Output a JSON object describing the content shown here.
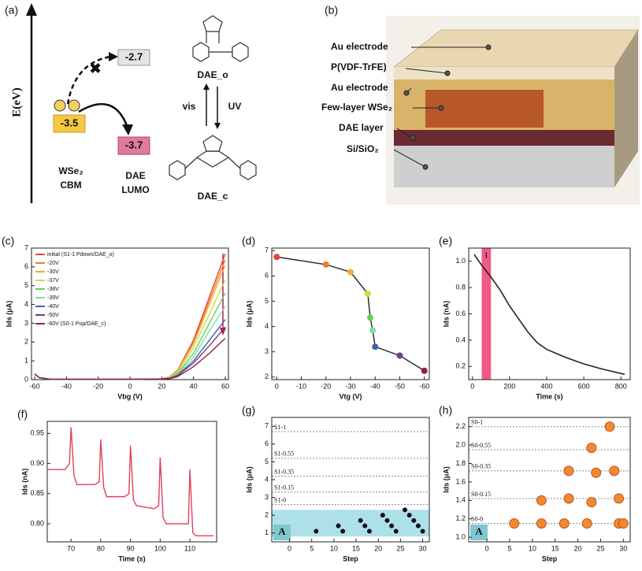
{
  "panel_a": {
    "panel": "(a)",
    "axis_label": "E(eV)",
    "wse2_level": "-3.5",
    "dae_o_level": "-2.7",
    "dae_c_level": "-3.7",
    "wse2_label": [
      "WSe₂",
      "CBM"
    ],
    "dae_label": [
      "DAE",
      "LUMO"
    ],
    "open_form": "DAE_o",
    "closed_form": "DAE_c",
    "vis": "vis",
    "uv": "UV"
  },
  "panel_b": {
    "panel": "(b)",
    "layers": [
      "Au electrode",
      "P(VDF-TrFE)",
      "Au electrode",
      "Few-layer WSe₂",
      "DAE layer",
      "Si/SiO₂"
    ]
  },
  "chart_data": [
    {
      "type": "line",
      "panel": "(c)",
      "xlabel": "Vbg (V)",
      "ylabel": "Ids (μA)",
      "xlim": [
        -62,
        62
      ],
      "ylim": [
        0,
        7
      ],
      "xticks": [
        -60,
        -40,
        -20,
        0,
        20,
        40,
        60
      ],
      "yticks": [
        0,
        1,
        2,
        3,
        4,
        5,
        6,
        7
      ],
      "legend": true,
      "x": [
        -60,
        -57,
        -50,
        -30,
        0,
        20,
        25,
        30,
        40,
        50,
        60
      ],
      "series": [
        {
          "name": "initial (S1-1 Pdown/DAE_o)",
          "color": "#e8443a",
          "values": [
            0.3,
            0.1,
            0.02,
            0.02,
            0.02,
            0.04,
            0.15,
            0.5,
            2.1,
            4.4,
            6.7
          ]
        },
        {
          "name": "-20V",
          "color": "#f07c30",
          "values": [
            0.3,
            0.1,
            0.02,
            0.02,
            0.02,
            0.04,
            0.14,
            0.48,
            2.0,
            4.2,
            6.4
          ]
        },
        {
          "name": "-30V",
          "color": "#f0b030",
          "values": [
            0.3,
            0.1,
            0.02,
            0.02,
            0.02,
            0.04,
            0.14,
            0.46,
            1.9,
            4.0,
            6.1
          ]
        },
        {
          "name": "-37V",
          "color": "#c8e040",
          "values": [
            0.3,
            0.1,
            0.02,
            0.02,
            0.02,
            0.04,
            0.12,
            0.4,
            1.7,
            3.5,
            5.3
          ]
        },
        {
          "name": "-38V",
          "color": "#60d060",
          "values": [
            0.3,
            0.1,
            0.02,
            0.02,
            0.02,
            0.04,
            0.1,
            0.34,
            1.4,
            3.0,
            4.6
          ]
        },
        {
          "name": "-39V",
          "color": "#80e0a0",
          "values": [
            0.3,
            0.1,
            0.02,
            0.02,
            0.02,
            0.04,
            0.09,
            0.29,
            1.2,
            2.6,
            3.9
          ]
        },
        {
          "name": "-40V",
          "color": "#4060b0",
          "values": [
            0.3,
            0.1,
            0.02,
            0.02,
            0.02,
            0.04,
            0.07,
            0.24,
            1.0,
            2.1,
            3.2
          ]
        },
        {
          "name": "-50V",
          "color": "#704080",
          "values": [
            0.3,
            0.1,
            0.02,
            0.02,
            0.02,
            0.04,
            0.06,
            0.21,
            0.88,
            1.8,
            2.8
          ]
        },
        {
          "name": "-60V (S0-1 Pup/DAE_c)",
          "color": "#902040",
          "values": [
            0.3,
            0.1,
            0.02,
            0.02,
            0.02,
            0.04,
            0.05,
            0.16,
            0.69,
            1.4,
            2.2
          ]
        }
      ]
    },
    {
      "type": "line",
      "panel": "(d)",
      "xlabel": "Vtg (V)",
      "ylabel": "Ids (μA)",
      "xlim": [
        2,
        -62
      ],
      "ylim": [
        1.9,
        7.1
      ],
      "xticks": [
        0,
        -10,
        -20,
        -30,
        -40,
        -50,
        -60
      ],
      "yticks": [
        2,
        3,
        4,
        5,
        6,
        7
      ],
      "color": "#222222",
      "x": [
        0,
        -20,
        -30,
        -37,
        -38,
        -39,
        -40,
        -50,
        -60
      ],
      "values": [
        6.75,
        6.45,
        6.15,
        5.3,
        4.35,
        3.85,
        3.2,
        2.85,
        2.25
      ],
      "point_colors": [
        "#e8443a",
        "#f07c30",
        "#f0b030",
        "#c8e040",
        "#60d060",
        "#80e0a0",
        "#4060b0",
        "#704080",
        "#902040"
      ]
    },
    {
      "type": "line",
      "panel": "(e)",
      "xlabel": "Time (s)",
      "ylabel": "Ids (nA)",
      "xlim": [
        -20,
        850
      ],
      "ylim": [
        0.1,
        1.1
      ],
      "xticks": [
        0,
        200,
        400,
        600,
        800
      ],
      "yticks": [
        0.2,
        0.4,
        0.6,
        0.8,
        {
          "value": 1.0,
          "label": "1.0"
        }
      ],
      "color": "#222222",
      "shaded_x": [
        50,
        100
      ],
      "shade_label": "I",
      "x": [
        10,
        50,
        100,
        150,
        200,
        250,
        300,
        350,
        400,
        500,
        600,
        700,
        820
      ],
      "values": [
        1.05,
        0.97,
        0.88,
        0.78,
        0.66,
        0.56,
        0.46,
        0.38,
        0.33,
        0.27,
        0.22,
        0.18,
        0.14
      ]
    },
    {
      "type": "line",
      "panel": "(f)",
      "xlabel": "Time (s)",
      "ylabel": "Ids (nA)",
      "xlim": [
        62,
        119
      ],
      "ylim": [
        0.77,
        0.97
      ],
      "xticks": [
        70,
        80,
        90,
        100,
        110
      ],
      "yticks": [
        {
          "value": 0.8,
          "label": "0.80"
        },
        0.85,
        {
          "value": 0.9,
          "label": "0.90"
        },
        0.95
      ],
      "color": "#e0405a",
      "x": [
        62,
        68,
        69.5,
        70,
        71,
        72,
        78,
        79.5,
        80,
        81,
        82,
        88,
        89.5,
        90,
        91,
        92,
        98,
        99.5,
        100,
        101,
        102,
        108,
        109.5,
        110,
        111,
        112,
        118
      ],
      "values": [
        0.89,
        0.89,
        0.9,
        0.96,
        0.88,
        0.865,
        0.865,
        0.87,
        0.94,
        0.86,
        0.845,
        0.845,
        0.85,
        0.93,
        0.84,
        0.83,
        0.825,
        0.83,
        0.91,
        0.81,
        0.8,
        0.8,
        0.8,
        0.89,
        0.785,
        0.78,
        0.78
      ]
    },
    {
      "type": "scatter",
      "panel": "(g)",
      "xlabel": "Step",
      "ylabel": "Ids (μA)",
      "xlim": [
        -4,
        31.5
      ],
      "ylim": [
        0.5,
        7.5
      ],
      "xticks": [
        0,
        5,
        10,
        15,
        20,
        25,
        30
      ],
      "yticks": [
        1,
        2,
        3,
        4,
        5,
        6,
        7
      ],
      "color": "#111111",
      "band": [
        0.8,
        2.3
      ],
      "band_label": "A",
      "levels": [
        {
          "value": 6.7,
          "label": "S1-1"
        },
        {
          "value": 5.2,
          "label": "S1-0.55"
        },
        {
          "value": 4.2,
          "label": "S1-0.35"
        },
        {
          "value": 3.3,
          "label": "S1-0.15"
        },
        {
          "value": 2.6,
          "label": "S1-0"
        }
      ],
      "x": [
        6,
        11,
        12,
        16,
        17,
        18,
        21,
        22,
        23,
        24,
        26,
        27,
        28,
        29,
        30
      ],
      "values": [
        1.1,
        1.4,
        1.1,
        1.7,
        1.4,
        1.1,
        2.0,
        1.7,
        1.4,
        1.1,
        2.3,
        2.0,
        1.7,
        1.4,
        1.1
      ]
    },
    {
      "type": "scatter",
      "panel": "(h)",
      "xlabel": "Step",
      "ylabel": "Ids (μA)",
      "xlim": [
        -4,
        31.5
      ],
      "ylim": [
        0.95,
        2.3
      ],
      "xticks": [
        0,
        5,
        10,
        15,
        20,
        25,
        30
      ],
      "yticks": [
        {
          "value": 1.0,
          "label": "1.0"
        },
        1.2,
        1.4,
        1.6,
        1.8,
        {
          "value": 2.0,
          "label": "2.0"
        },
        2.2
      ],
      "color": "#f08a30",
      "band_label": "A",
      "levels": [
        {
          "value": 2.2,
          "label": "S0-1"
        },
        {
          "value": 1.95,
          "label": "S0-0.55"
        },
        {
          "value": 1.72,
          "label": "S0-0.35"
        },
        {
          "value": 1.42,
          "label": "S0-0.15"
        },
        {
          "value": 1.15,
          "label": "S0-0"
        }
      ],
      "x": [
        6,
        12,
        12,
        17,
        18,
        18,
        22,
        23,
        24,
        23,
        27,
        28,
        29,
        29,
        30
      ],
      "values": [
        1.15,
        1.15,
        1.4,
        1.15,
        1.42,
        1.72,
        1.15,
        1.38,
        1.7,
        1.97,
        2.2,
        1.72,
        1.42,
        1.15,
        1.15
      ]
    }
  ]
}
